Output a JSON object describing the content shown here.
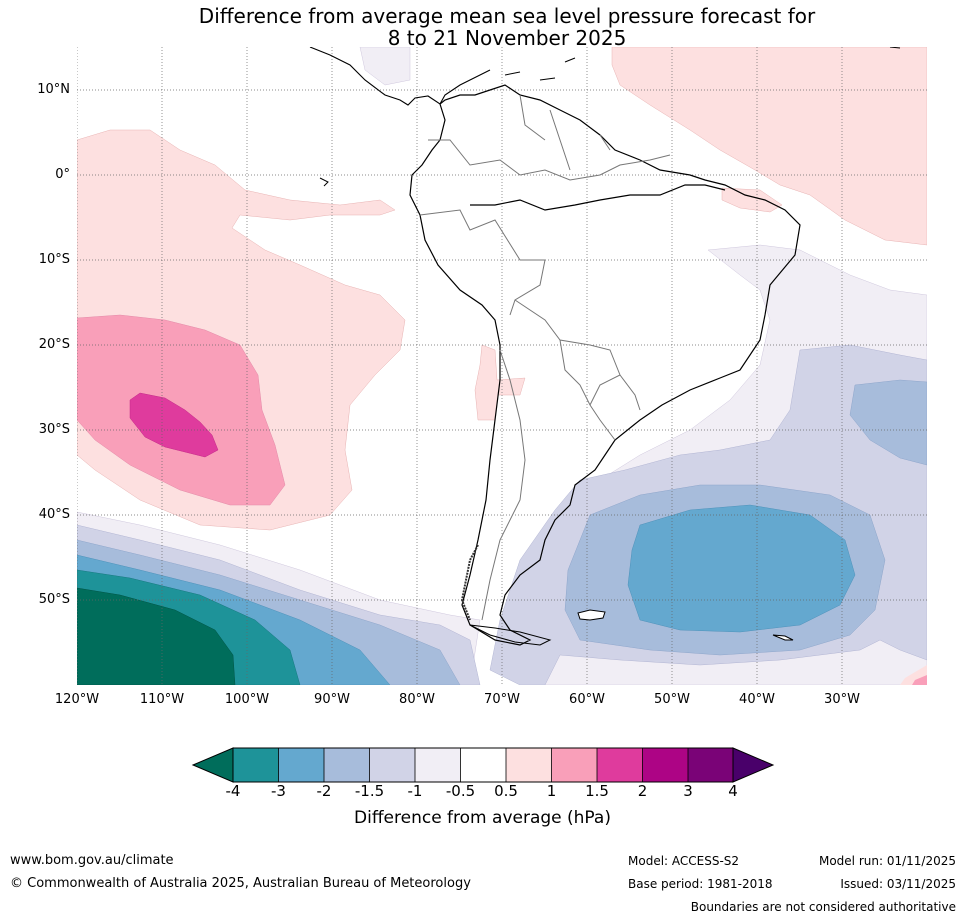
{
  "title": {
    "line1": "Difference from average mean sea level pressure forecast for",
    "line2": "8 to 21 November 2025"
  },
  "map": {
    "latitude_labels": [
      "10°N",
      "0°",
      "10°S",
      "20°S",
      "30°S",
      "40°S",
      "50°S"
    ],
    "longitude_labels": [
      "120°W",
      "110°W",
      "100°W",
      "90°W",
      "80°W",
      "70°W",
      "60°W",
      "50°W",
      "40°W",
      "30°W"
    ],
    "extent": {
      "lon_min": -120,
      "lon_max": -20,
      "lat_min": -60,
      "lat_max": 15
    }
  },
  "colorbar": {
    "label": "Difference from average (hPa)",
    "ticks": [
      "-4",
      "-3",
      "-2",
      "-1.5",
      "-1",
      "-0.5",
      "0.5",
      "1",
      "1.5",
      "2",
      "3",
      "4"
    ],
    "colors": {
      "below_min": "#006d5b",
      "bins": [
        "#1e9399",
        "#64a8cf",
        "#a7bcdb",
        "#d1d3e7",
        "#f1eef5",
        "#ffffff",
        "#fde0e0",
        "#f99fb9",
        "#df3b9d",
        "#ad0485",
        "#7a0377"
      ],
      "above_max": "#49006a"
    }
  },
  "footer": {
    "website": "www.bom.gov.au/climate",
    "copyright": "© Commonwealth of Australia 2025, Australian Bureau of Meteorology",
    "model": "Model: ACCESS-S2",
    "base_period": "Base period: 1981-2018",
    "model_run": "Model run: 01/11/2025",
    "issued": "Issued: 03/11/2025",
    "disclaimer": "Boundaries are not considered authoritative"
  }
}
